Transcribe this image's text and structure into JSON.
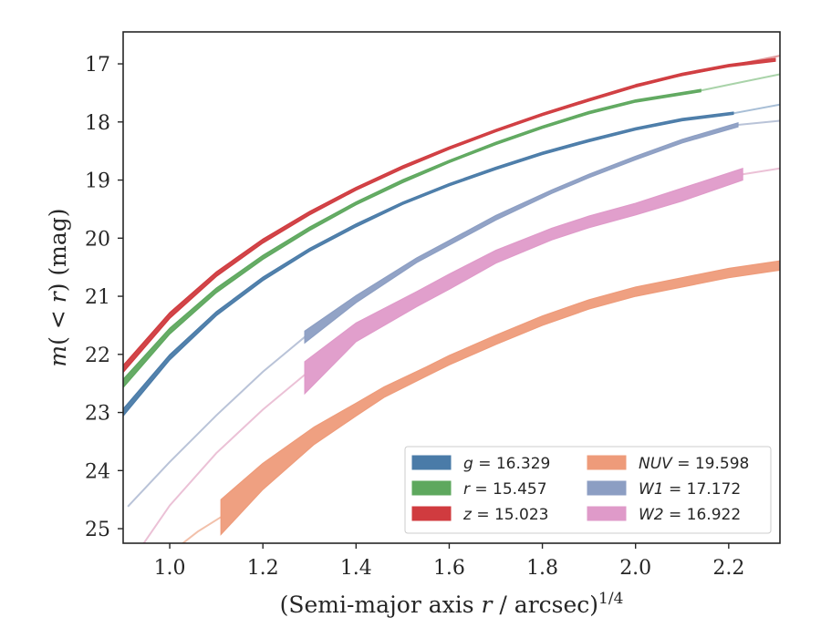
{
  "chart_data": {
    "type": "line",
    "title": "",
    "xlabel_main": "(Semi-major axis ",
    "xlabel_var": "r",
    "xlabel_rest": " / arcsec)",
    "xlabel_sup": "1/4",
    "ylabel_m": "m",
    "ylabel_open": "(",
    "ylabel_lt": " < ",
    "ylabel_r": "r",
    "ylabel_close": ")",
    "ylabel_unit": " (mag)",
    "xlim": [
      0.9,
      2.31
    ],
    "ylim": [
      25.25,
      16.45
    ],
    "y_inverted": true,
    "xticks": [
      1.0,
      1.2,
      1.4,
      1.6,
      1.8,
      2.0,
      2.2
    ],
    "xtick_labels": [
      "1.0",
      "1.2",
      "1.4",
      "1.6",
      "1.8",
      "2.0",
      "2.2"
    ],
    "yticks": [
      17,
      18,
      19,
      20,
      21,
      22,
      23,
      24,
      25
    ],
    "ytick_labels": [
      "17",
      "18",
      "19",
      "20",
      "21",
      "22",
      "23",
      "24",
      "25"
    ],
    "grid": false,
    "legend_position": "lower-right",
    "series": [
      {
        "key": "z",
        "var": "z",
        "value_text": " = 15.023",
        "color": "#d03b3f",
        "ext_color": "#e19a9c",
        "x": [
          0.9,
          1.0,
          1.1,
          1.2,
          1.3,
          1.4,
          1.5,
          1.6,
          1.7,
          1.8,
          1.9,
          2.0,
          2.1,
          2.2,
          2.3
        ],
        "y": [
          22.25,
          21.33,
          20.62,
          20.05,
          19.57,
          19.15,
          18.78,
          18.45,
          18.15,
          17.87,
          17.62,
          17.38,
          17.18,
          17.03,
          16.93
        ],
        "width": [
          0.12,
          0.1,
          0.08,
          0.07,
          0.06,
          0.05,
          0.05,
          0.04,
          0.04,
          0.04,
          0.04,
          0.04,
          0.04,
          0.04,
          0.05
        ],
        "main_end": 2.31,
        "ext_x": [
          2.0,
          2.31
        ],
        "ext_y": [
          17.36,
          16.86
        ]
      },
      {
        "key": "r",
        "var": "r",
        "value_text": " = 15.457",
        "color": "#5ea85e",
        "ext_color": "#a9d3a9",
        "x": [
          0.9,
          1.0,
          1.1,
          1.2,
          1.3,
          1.4,
          1.5,
          1.6,
          1.7,
          1.8,
          1.9,
          2.0,
          2.14
        ],
        "y": [
          22.5,
          21.6,
          20.9,
          20.33,
          19.84,
          19.4,
          19.02,
          18.68,
          18.37,
          18.09,
          17.84,
          17.64,
          17.46
        ],
        "width": [
          0.14,
          0.1,
          0.08,
          0.07,
          0.06,
          0.05,
          0.05,
          0.04,
          0.04,
          0.04,
          0.04,
          0.04,
          0.04
        ],
        "main_end": 2.14,
        "ext_x": [
          2.14,
          2.2,
          2.31
        ],
        "ext_y": [
          17.46,
          17.36,
          17.18
        ]
      },
      {
        "key": "g",
        "var": "g",
        "value_text": " = 16.329",
        "color": "#4a7ba8",
        "ext_color": "#a7bed6",
        "x": [
          0.9,
          1.0,
          1.1,
          1.2,
          1.3,
          1.4,
          1.5,
          1.6,
          1.7,
          1.8,
          1.9,
          2.0,
          2.1,
          2.21
        ],
        "y": [
          23.0,
          22.05,
          21.3,
          20.7,
          20.2,
          19.78,
          19.4,
          19.08,
          18.8,
          18.54,
          18.32,
          18.12,
          17.96,
          17.85
        ],
        "width": [
          0.12,
          0.09,
          0.07,
          0.06,
          0.05,
          0.05,
          0.04,
          0.04,
          0.04,
          0.04,
          0.04,
          0.04,
          0.04,
          0.04
        ],
        "main_end": 2.21,
        "ext_x": [
          2.21,
          2.31
        ],
        "ext_y": [
          17.85,
          17.7
        ]
      },
      {
        "key": "w1",
        "var": "W1",
        "value_text": " = 17.172",
        "color": "#8c9ec3",
        "ext_color": "#b9c3d8",
        "x": [
          1.29,
          1.4,
          1.53,
          1.6,
          1.7,
          1.82,
          1.9,
          2.0,
          2.1,
          2.22
        ],
        "y": [
          21.7,
          21.05,
          20.38,
          20.08,
          19.65,
          19.2,
          18.93,
          18.62,
          18.33,
          18.05
        ],
        "width": [
          0.2,
          0.12,
          0.08,
          0.08,
          0.08,
          0.06,
          0.06,
          0.06,
          0.06,
          0.07
        ],
        "main_end": 2.22,
        "ext_x": [
          0.91,
          1.0,
          1.1,
          1.2,
          1.29
        ],
        "ext_y": [
          24.62,
          23.85,
          23.05,
          22.3,
          21.7
        ],
        "ext2_x": [
          2.22,
          2.31
        ],
        "ext2_y": [
          18.05,
          17.98
        ]
      },
      {
        "key": "w2",
        "var": "W2",
        "value_text": " = 16.922",
        "color": "#df9ac9",
        "ext_color": "#ebc1d6",
        "x": [
          1.29,
          1.4,
          1.53,
          1.6,
          1.7,
          1.82,
          1.9,
          2.0,
          2.1,
          2.23
        ],
        "y": [
          22.4,
          21.62,
          21.05,
          20.75,
          20.32,
          19.93,
          19.72,
          19.5,
          19.25,
          18.9
        ],
        "width": [
          0.55,
          0.32,
          0.26,
          0.26,
          0.22,
          0.2,
          0.2,
          0.2,
          0.22,
          0.2
        ],
        "main_end": 2.23,
        "ext_x": [
          0.94,
          1.0,
          1.1,
          1.2,
          1.29
        ],
        "ext_y": [
          25.3,
          24.6,
          23.7,
          22.95,
          22.35
        ],
        "ext2_x": [
          2.23,
          2.31
        ],
        "ext2_y": [
          18.9,
          18.8
        ]
      },
      {
        "key": "nuv",
        "var": "NUV",
        "value_text": " = 19.598",
        "color": "#ee9b7a",
        "ext_color": "#f2c0aa",
        "x": [
          1.11,
          1.2,
          1.31,
          1.4,
          1.46,
          1.55,
          1.6,
          1.7,
          1.8,
          1.9,
          2.0,
          2.1,
          2.2,
          2.31
        ],
        "y": [
          24.8,
          24.1,
          23.4,
          22.95,
          22.65,
          22.3,
          22.1,
          21.75,
          21.42,
          21.14,
          20.92,
          20.76,
          20.6,
          20.47
        ],
        "width": [
          0.6,
          0.45,
          0.3,
          0.22,
          0.18,
          0.16,
          0.16,
          0.16,
          0.16,
          0.16,
          0.16,
          0.16,
          0.16,
          0.16
        ],
        "main_end": 2.31,
        "ext_x": [
          1.02,
          1.06,
          1.11
        ],
        "ext_y": [
          25.3,
          25.05,
          24.8
        ]
      }
    ],
    "legend_columns": [
      [
        "g",
        "r",
        "z"
      ],
      [
        "nuv",
        "w1",
        "w2"
      ]
    ]
  }
}
